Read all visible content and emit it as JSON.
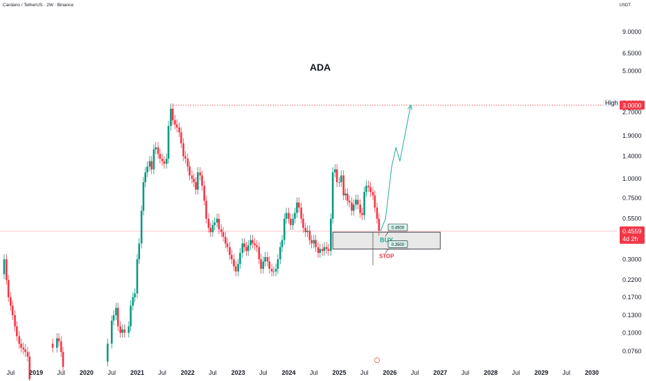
{
  "header": {
    "symbol_info": "Cardano / TetherUS · 2W · Binance",
    "currency": "USDT"
  },
  "chart_data": {
    "type": "candlestick",
    "title": "ADA",
    "y_scale": "log",
    "ylim": [
      0.065,
      12
    ],
    "xlim": [
      "2018-04-15",
      "2030-07-01"
    ],
    "y_ticks": [
      "9.0000",
      "6.5000",
      "5.0000",
      "2.7000",
      "1.9000",
      "1.4000",
      "1.0000",
      "0.7500",
      "0.5500",
      "0.3000",
      "0.2200",
      "0.1700",
      "0.1300",
      "0.1000",
      "0.0760"
    ],
    "x_ticks": [
      {
        "label": "Jul",
        "date": "2018-07-01",
        "year": false
      },
      {
        "label": "2019",
        "date": "2019-01-01",
        "year": true
      },
      {
        "label": "Jul",
        "date": "2019-07-01",
        "year": false
      },
      {
        "label": "2020",
        "date": "2020-01-01",
        "year": true
      },
      {
        "label": "Jul",
        "date": "2020-07-01",
        "year": false
      },
      {
        "label": "2021",
        "date": "2021-01-01",
        "year": true
      },
      {
        "label": "Jul",
        "date": "2021-07-01",
        "year": false
      },
      {
        "label": "2022",
        "date": "2022-01-01",
        "year": true
      },
      {
        "label": "Jul",
        "date": "2022-07-01",
        "year": false
      },
      {
        "label": "2023",
        "date": "2023-01-01",
        "year": true
      },
      {
        "label": "Jul",
        "date": "2023-07-01",
        "year": false
      },
      {
        "label": "2024",
        "date": "2024-01-01",
        "year": true
      },
      {
        "label": "Jul",
        "date": "2024-07-01",
        "year": false
      },
      {
        "label": "2025",
        "date": "2025-01-01",
        "year": true
      },
      {
        "label": "Jul",
        "date": "2025-07-01",
        "year": false
      },
      {
        "label": "2026",
        "date": "2026-01-01",
        "year": true
      },
      {
        "label": "Jul",
        "date": "2026-07-01",
        "year": false
      },
      {
        "label": "2027",
        "date": "2027-01-01",
        "year": true
      },
      {
        "label": "Jul",
        "date": "2027-07-01",
        "year": false
      },
      {
        "label": "2028",
        "date": "2028-01-01",
        "year": true
      },
      {
        "label": "Jul",
        "date": "2028-07-01",
        "year": false
      },
      {
        "label": "2029",
        "date": "2029-01-01",
        "year": true
      },
      {
        "label": "Jul",
        "date": "2029-07-01",
        "year": false
      },
      {
        "label": "2030",
        "date": "2030-01-01",
        "year": true
      }
    ],
    "price_path": [
      {
        "date": "2018-05-01",
        "price": 0.24
      },
      {
        "date": "2018-05-15",
        "price": 0.3
      },
      {
        "date": "2018-06-01",
        "price": 0.22
      },
      {
        "date": "2018-06-15",
        "price": 0.17
      },
      {
        "date": "2018-07-01",
        "price": 0.15
      },
      {
        "date": "2018-07-15",
        "price": 0.13
      },
      {
        "date": "2018-08-01",
        "price": 0.11
      },
      {
        "date": "2018-08-15",
        "price": 0.095
      },
      {
        "date": "2018-09-01",
        "price": 0.085
      },
      {
        "date": "2018-09-15",
        "price": 0.08
      },
      {
        "date": "2018-10-01",
        "price": 0.078
      },
      {
        "date": "2018-10-15",
        "price": 0.075
      },
      {
        "date": "2018-11-01",
        "price": 0.07
      },
      {
        "date": "2018-11-15",
        "price": 0.05
      },
      {
        "date": "2019-04-01",
        "price": 0.085
      },
      {
        "date": "2019-05-01",
        "price": 0.08
      },
      {
        "date": "2019-06-01",
        "price": 0.092
      },
      {
        "date": "2019-06-15",
        "price": 0.088
      },
      {
        "date": "2019-07-01",
        "price": 0.075
      },
      {
        "date": "2019-07-15",
        "price": 0.06
      },
      {
        "date": "2020-03-15",
        "price": 0.035
      },
      {
        "date": "2020-05-15",
        "price": 0.065
      },
      {
        "date": "2020-06-01",
        "price": 0.085
      },
      {
        "date": "2020-07-01",
        "price": 0.12
      },
      {
        "date": "2020-07-15",
        "price": 0.13
      },
      {
        "date": "2020-08-01",
        "price": 0.145
      },
      {
        "date": "2020-08-15",
        "price": 0.11
      },
      {
        "date": "2020-09-01",
        "price": 0.1
      },
      {
        "date": "2020-09-15",
        "price": 0.105
      },
      {
        "date": "2020-10-01",
        "price": 0.1
      },
      {
        "date": "2020-11-01",
        "price": 0.11
      },
      {
        "date": "2020-11-15",
        "price": 0.15
      },
      {
        "date": "2020-12-01",
        "price": 0.17
      },
      {
        "date": "2020-12-15",
        "price": 0.18
      },
      {
        "date": "2021-01-01",
        "price": 0.3
      },
      {
        "date": "2021-01-15",
        "price": 0.38
      },
      {
        "date": "2021-02-01",
        "price": 0.62
      },
      {
        "date": "2021-02-15",
        "price": 0.95
      },
      {
        "date": "2021-03-01",
        "price": 1.1
      },
      {
        "date": "2021-03-15",
        "price": 1.2
      },
      {
        "date": "2021-04-01",
        "price": 1.3
      },
      {
        "date": "2021-04-15",
        "price": 1.15
      },
      {
        "date": "2021-05-01",
        "price": 1.55
      },
      {
        "date": "2021-05-15",
        "price": 1.6
      },
      {
        "date": "2021-06-01",
        "price": 1.45
      },
      {
        "date": "2021-06-15",
        "price": 1.35
      },
      {
        "date": "2021-07-01",
        "price": 1.3
      },
      {
        "date": "2021-07-15",
        "price": 1.25
      },
      {
        "date": "2021-08-01",
        "price": 1.35
      },
      {
        "date": "2021-08-15",
        "price": 2.2
      },
      {
        "date": "2021-09-01",
        "price": 2.85
      },
      {
        "date": "2021-09-15",
        "price": 2.4
      },
      {
        "date": "2021-10-01",
        "price": 2.25
      },
      {
        "date": "2021-10-15",
        "price": 2.15
      },
      {
        "date": "2021-11-01",
        "price": 2.0
      },
      {
        "date": "2021-11-15",
        "price": 1.7
      },
      {
        "date": "2021-12-01",
        "price": 1.4
      },
      {
        "date": "2021-12-15",
        "price": 1.35
      },
      {
        "date": "2022-01-01",
        "price": 1.2
      },
      {
        "date": "2022-01-15",
        "price": 1.05
      },
      {
        "date": "2022-02-01",
        "price": 1.0
      },
      {
        "date": "2022-02-15",
        "price": 0.95
      },
      {
        "date": "2022-03-01",
        "price": 0.85
      },
      {
        "date": "2022-03-15",
        "price": 1.1
      },
      {
        "date": "2022-04-01",
        "price": 1.05
      },
      {
        "date": "2022-04-15",
        "price": 0.9
      },
      {
        "date": "2022-05-01",
        "price": 0.72
      },
      {
        "date": "2022-05-15",
        "price": 0.55
      },
      {
        "date": "2022-06-01",
        "price": 0.48
      },
      {
        "date": "2022-06-15",
        "price": 0.45
      },
      {
        "date": "2022-07-01",
        "price": 0.5
      },
      {
        "date": "2022-07-15",
        "price": 0.52
      },
      {
        "date": "2022-08-01",
        "price": 0.55
      },
      {
        "date": "2022-08-15",
        "price": 0.47
      },
      {
        "date": "2022-09-01",
        "price": 0.45
      },
      {
        "date": "2022-09-15",
        "price": 0.42
      },
      {
        "date": "2022-10-01",
        "price": 0.38
      },
      {
        "date": "2022-10-15",
        "price": 0.36
      },
      {
        "date": "2022-11-01",
        "price": 0.32
      },
      {
        "date": "2022-11-15",
        "price": 0.3
      },
      {
        "date": "2022-12-01",
        "price": 0.27
      },
      {
        "date": "2022-12-15",
        "price": 0.25
      },
      {
        "date": "2023-01-01",
        "price": 0.28
      },
      {
        "date": "2023-01-15",
        "price": 0.33
      },
      {
        "date": "2023-02-01",
        "price": 0.38
      },
      {
        "date": "2023-02-15",
        "price": 0.36
      },
      {
        "date": "2023-03-01",
        "price": 0.34
      },
      {
        "date": "2023-03-15",
        "price": 0.37
      },
      {
        "date": "2023-04-01",
        "price": 0.4
      },
      {
        "date": "2023-04-15",
        "price": 0.38
      },
      {
        "date": "2023-05-01",
        "price": 0.37
      },
      {
        "date": "2023-05-15",
        "price": 0.36
      },
      {
        "date": "2023-06-01",
        "price": 0.3
      },
      {
        "date": "2023-06-15",
        "price": 0.26
      },
      {
        "date": "2023-07-01",
        "price": 0.29
      },
      {
        "date": "2023-07-15",
        "price": 0.31
      },
      {
        "date": "2023-08-01",
        "price": 0.29
      },
      {
        "date": "2023-08-15",
        "price": 0.26
      },
      {
        "date": "2023-09-01",
        "price": 0.25
      },
      {
        "date": "2023-09-15",
        "price": 0.25
      },
      {
        "date": "2023-10-01",
        "price": 0.26
      },
      {
        "date": "2023-10-15",
        "price": 0.3
      },
      {
        "date": "2023-11-01",
        "price": 0.36
      },
      {
        "date": "2023-11-15",
        "price": 0.4
      },
      {
        "date": "2023-12-01",
        "price": 0.55
      },
      {
        "date": "2023-12-15",
        "price": 0.6
      },
      {
        "date": "2024-01-01",
        "price": 0.55
      },
      {
        "date": "2024-01-15",
        "price": 0.5
      },
      {
        "date": "2024-02-01",
        "price": 0.55
      },
      {
        "date": "2024-02-15",
        "price": 0.6
      },
      {
        "date": "2024-03-01",
        "price": 0.7
      },
      {
        "date": "2024-03-15",
        "price": 0.65
      },
      {
        "date": "2024-04-01",
        "price": 0.55
      },
      {
        "date": "2024-04-15",
        "price": 0.48
      },
      {
        "date": "2024-05-01",
        "price": 0.45
      },
      {
        "date": "2024-05-15",
        "price": 0.46
      },
      {
        "date": "2024-06-01",
        "price": 0.4
      },
      {
        "date": "2024-06-15",
        "price": 0.38
      },
      {
        "date": "2024-07-01",
        "price": 0.4
      },
      {
        "date": "2024-07-15",
        "price": 0.36
      },
      {
        "date": "2024-08-01",
        "price": 0.33
      },
      {
        "date": "2024-08-15",
        "price": 0.35
      },
      {
        "date": "2024-09-01",
        "price": 0.34
      },
      {
        "date": "2024-09-15",
        "price": 0.36
      },
      {
        "date": "2024-10-01",
        "price": 0.35
      },
      {
        "date": "2024-10-15",
        "price": 0.34
      },
      {
        "date": "2024-11-01",
        "price": 0.55
      },
      {
        "date": "2024-11-15",
        "price": 1.1
      },
      {
        "date": "2024-12-01",
        "price": 1.15
      },
      {
        "date": "2024-12-15",
        "price": 0.95
      },
      {
        "date": "2025-01-01",
        "price": 0.95
      },
      {
        "date": "2025-01-15",
        "price": 1.05
      },
      {
        "date": "2025-02-01",
        "price": 0.78
      },
      {
        "date": "2025-02-15",
        "price": 0.8
      },
      {
        "date": "2025-03-01",
        "price": 0.72
      },
      {
        "date": "2025-03-15",
        "price": 0.7
      },
      {
        "date": "2025-04-01",
        "price": 0.62
      },
      {
        "date": "2025-04-15",
        "price": 0.68
      },
      {
        "date": "2025-05-01",
        "price": 0.73
      },
      {
        "date": "2025-05-15",
        "price": 0.68
      },
      {
        "date": "2025-06-01",
        "price": 0.6
      },
      {
        "date": "2025-06-15",
        "price": 0.58
      },
      {
        "date": "2025-07-01",
        "price": 0.82
      },
      {
        "date": "2025-07-15",
        "price": 0.9
      },
      {
        "date": "2025-08-01",
        "price": 0.88
      },
      {
        "date": "2025-08-15",
        "price": 0.82
      },
      {
        "date": "2025-09-01",
        "price": 0.78
      },
      {
        "date": "2025-09-15",
        "price": 0.65
      },
      {
        "date": "2025-10-01",
        "price": 0.55
      },
      {
        "date": "2025-10-15",
        "price": 0.46
      }
    ],
    "projection": [
      {
        "date": "2025-10-25",
        "price": 0.4559
      },
      {
        "date": "2025-12-01",
        "price": 0.55
      },
      {
        "date": "2026-01-15",
        "price": 1.2
      },
      {
        "date": "2026-02-15",
        "price": 1.6
      },
      {
        "date": "2026-03-15",
        "price": 1.3
      },
      {
        "date": "2026-06-01",
        "price": 3.0
      }
    ],
    "resistance_line": {
      "price": 3.0,
      "label": "3.0000"
    },
    "current_price": {
      "price": 0.4559,
      "label": "0.4559",
      "countdown": "4d 2h"
    },
    "high_label": {
      "text": "High",
      "value": "3.1010"
    },
    "buy_zone": {
      "top": 0.45,
      "bottom": 0.35,
      "from": "2024-11-15",
      "to": "2027-01-01",
      "label": "BUY",
      "top_label": "0.4500",
      "bottom_label": "0.3500"
    },
    "stop": {
      "label": "STOP",
      "date": "2025-09-01",
      "low": 0.275
    },
    "colors": {
      "up": "#089981",
      "down": "#f23645",
      "resistance": "#f23645",
      "projection": "#22ab94",
      "buy_text": "#22ab94",
      "stop_text": "#f23645",
      "zone_fill": "#e0e0e0",
      "zone_stroke": "#131722"
    }
  }
}
